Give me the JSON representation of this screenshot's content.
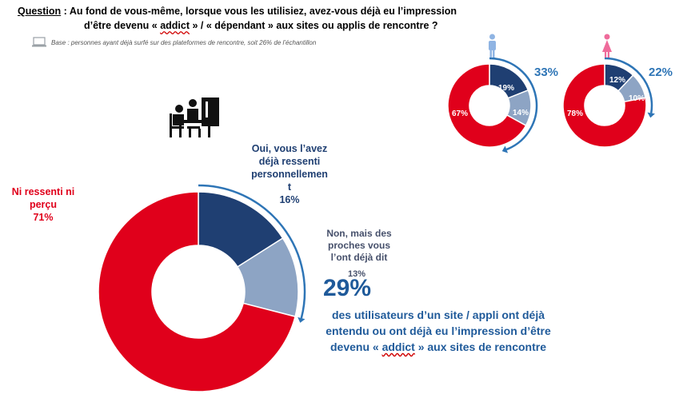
{
  "question": {
    "label": "Question",
    "line1_rest": " : Au fond de vous-même, lorsque vous les utilisiez, avez-vous déjà eu l’impression",
    "line2_a": "d’être devenu « ",
    "line2_addict": "addict",
    "line2_b": " » / « dépendant » aux sites ou applis de rencontre ?"
  },
  "base_note": "Base : personnes ayant déjà surfé sur des plateformes de rencontre, soit 26% de l’échantillon",
  "main_chart": {
    "label_yes": "Oui, vous l’avez déjà ressenti personnellemen t",
    "label_yes_lines": [
      "Oui, vous l’avez",
      "déjà ressenti",
      "personnellemen",
      "t"
    ],
    "value_yes": "16%",
    "label_proches_lines": [
      "Non, mais des",
      "proches vous",
      "l’ont déjà dit"
    ],
    "value_proches": "13%",
    "label_ni_lines": [
      "Ni ressenti ni",
      "perçu"
    ],
    "value_ni": "71%",
    "headline_pct": "29%",
    "headline_line1": "des utilisateurs d’un site / appli ont déjà",
    "headline_line2": "entendu ou ont déjà eu l’impression d’être",
    "headline_line3a": "devenu « ",
    "headline_addict": "addict",
    "headline_line3b": " » aux sites de rencontre"
  },
  "men_chart": {
    "label_19": "19%",
    "label_14": "14%",
    "label_67": "67%",
    "total": "33%"
  },
  "women_chart": {
    "label_12": "12%",
    "label_10": "10%",
    "label_78": "78%",
    "total": "22%"
  },
  "colors": {
    "dark_blue": "#1f3f72",
    "light_blue": "#8da4c4",
    "red": "#e0001b",
    "arrow_blue": "#2e75b6",
    "male_icon": "#8fb4e3",
    "female_icon": "#ef6b9b"
  },
  "icons": [
    "laptop-icon",
    "people-at-computer-icon",
    "male-icon",
    "female-icon"
  ],
  "chart_data": [
    {
      "type": "pie",
      "categories": [
        "Oui, vous l’avez déjà ressenti personnellement",
        "Non, mais des proches vous l’ont déjà dit",
        "Ni ressenti ni perçu"
      ],
      "values": [
        16,
        13,
        71
      ],
      "unit": "%"
    },
    {
      "type": "pie",
      "values": [
        19,
        14,
        67
      ],
      "unit": "%",
      "total_highlight": 33
    },
    {
      "type": "pie",
      "values": [
        12,
        10,
        78
      ],
      "unit": "%",
      "total_highlight": 22
    }
  ]
}
